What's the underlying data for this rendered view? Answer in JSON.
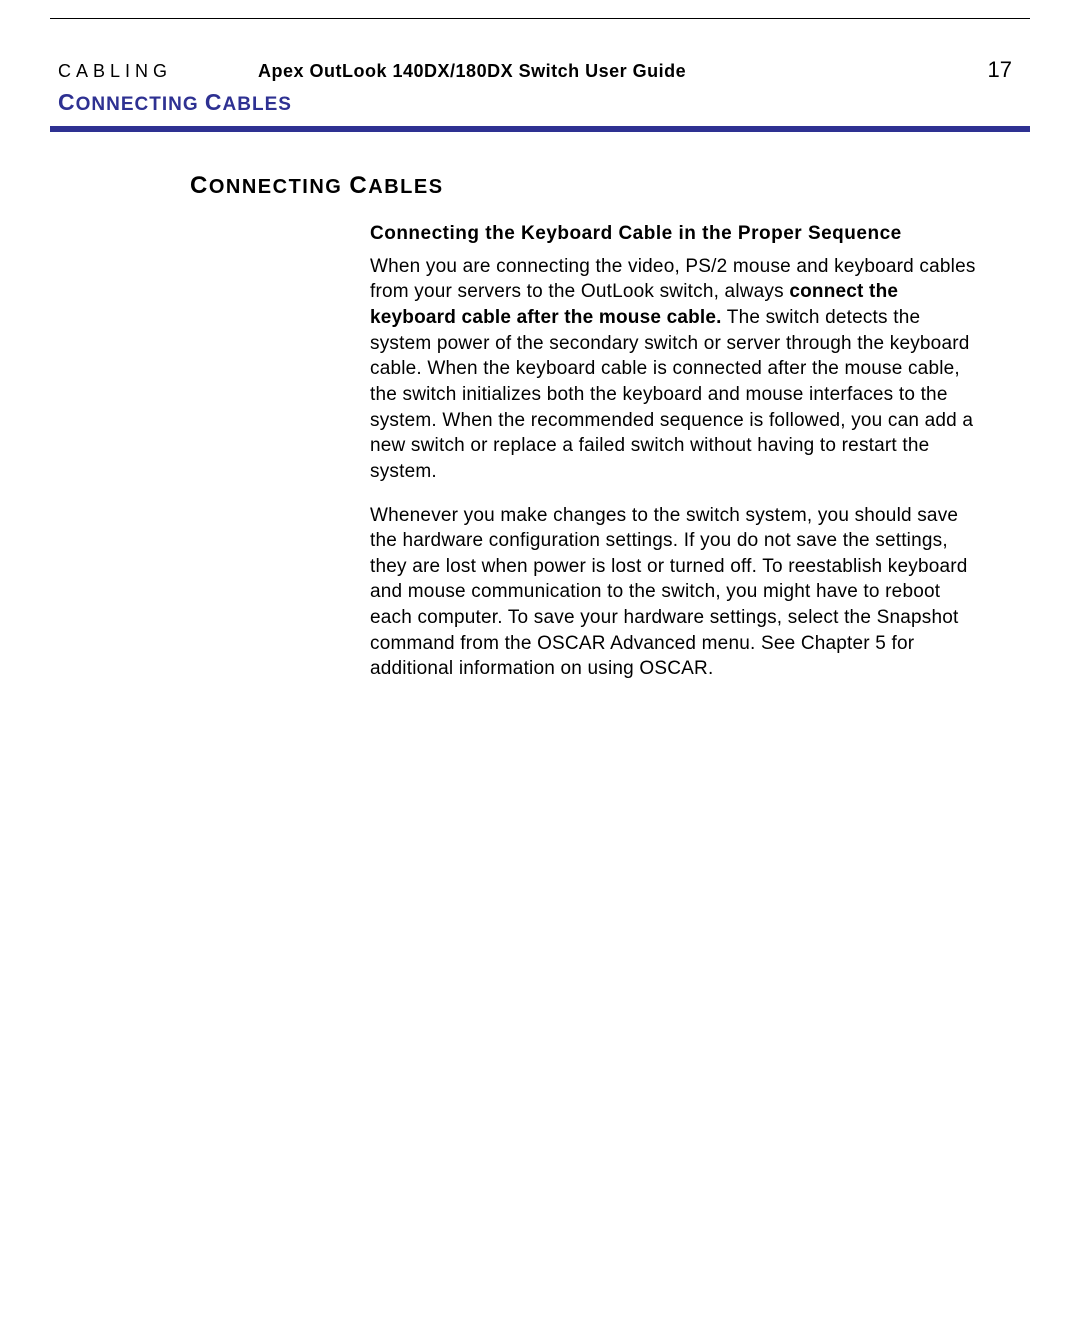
{
  "colors": {
    "accent": "#2e3192",
    "text": "#000000",
    "background": "#ffffff",
    "rule": "#000000"
  },
  "typography": {
    "body_fontsize_pt": 14,
    "heading_fontsize_pt": 17,
    "font_family": "Arial, Helvetica, sans-serif"
  },
  "header": {
    "chapter_label": "CABLING",
    "doc_title": "Apex OutLook 140DX/180DX Switch User Guide",
    "page_number": "17"
  },
  "section_header_top": {
    "word1_first": "C",
    "word1_rest": "ONNECTING",
    "word2_first": "C",
    "word2_rest": "ABLES"
  },
  "section_heading": {
    "word1_first": "C",
    "word1_rest": "ONNECTING",
    "word2_first": "C",
    "word2_rest": "ABLES"
  },
  "subheading": "Connecting the Keyboard Cable in the Proper Sequence",
  "para1": {
    "pre": "When you are connecting the video, PS/2 mouse and keyboard cables from your servers to the OutLook switch, always ",
    "bold": "connect the keyboard cable after the mouse cable.",
    "post": " The switch detects the system power of the secondary switch or server through the keyboard cable. When the keyboard cable is connected after the mouse cable, the switch initializes both the keyboard and mouse interfaces to the system. When the recommended sequence is followed, you can add a new switch or replace a failed switch without having to restart the system."
  },
  "para2": "Whenever you make changes to the switch system, you should save the hardware configuration settings. If you do not save the settings, they are lost when power is lost or turned off. To reestablish keyboard and mouse communication to the switch, you might have to reboot each computer. To save your hardware settings, select the Snapshot command from the OSCAR Advanced menu. See Chapter 5 for additional information on using OSCAR."
}
